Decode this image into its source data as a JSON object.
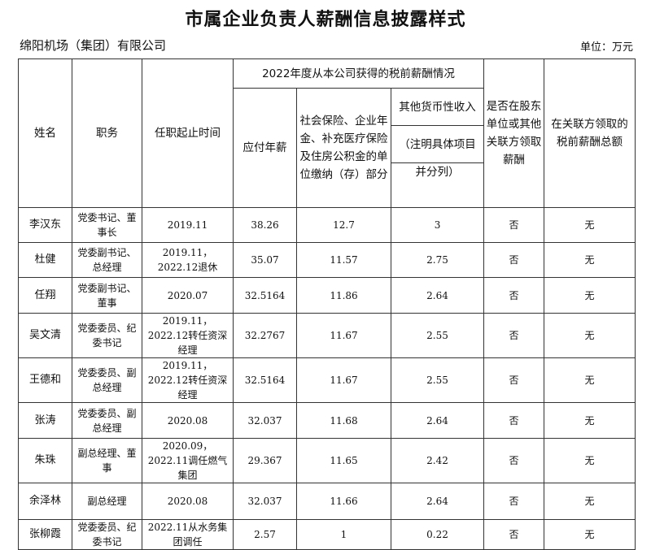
{
  "title": "市属企业负责人薪酬信息披露样式",
  "organization": "绵阳机场（集团）有限公司",
  "unit": "单位：万元",
  "headers": {
    "name": "姓名",
    "position": "职务",
    "term": "任职起止时间",
    "group": "2022年度从本公司获得的税前薪酬情况",
    "salary": "应付年薪",
    "insurance": "社会保险、企业年金、补充医疗保险及住房公积金的单位缴纳（存）部分",
    "other_1": "其他货币性收入",
    "other_2": "（注明具体项目",
    "other_3": "并分列）",
    "shareholder": "是否在股东单位或其他关联方领取薪酬",
    "related_total": "在关联方领取的税前薪酬总额"
  },
  "rows": [
    {
      "name": "李汉东",
      "position": "党委书记、董事长",
      "term": "2019.11",
      "salary": "38.26",
      "insurance": "12.7",
      "other": "3",
      "shareholder": "否",
      "related": "无"
    },
    {
      "name": "杜健",
      "position": "党委副书记、总经理",
      "term": "2019.11，2022.12退休",
      "salary": "35.07",
      "insurance": "11.57",
      "other": "2.75",
      "shareholder": "否",
      "related": "无"
    },
    {
      "name": "任翔",
      "position": "党委副书记、董事",
      "term": "2020.07",
      "salary": "32.5164",
      "insurance": "11.86",
      "other": "2.64",
      "shareholder": "否",
      "related": "无"
    },
    {
      "name": "吴文清",
      "position": "党委委员、纪委书记",
      "term": "2019.11，2022.12转任资深经理",
      "salary": "32.2767",
      "insurance": "11.67",
      "other": "2.55",
      "shareholder": "否",
      "related": "无"
    },
    {
      "name": "王德和",
      "position": "党委委员、副总经理",
      "term": "2019.11，2022.12转任资深经理",
      "salary": "32.5164",
      "insurance": "11.67",
      "other": "2.55",
      "shareholder": "否",
      "related": "无"
    },
    {
      "name": "张涛",
      "position": "党委委员、副总经理",
      "term": "2020.08",
      "salary": "32.037",
      "insurance": "11.68",
      "other": "2.64",
      "shareholder": "否",
      "related": "无"
    },
    {
      "name": "朱珠",
      "position": "副总经理、董事",
      "term": "2020.09，2022.11调任燃气集团",
      "salary": "29.367",
      "insurance": "11.65",
      "other": "2.42",
      "shareholder": "否",
      "related": "无"
    },
    {
      "name": "余泽林",
      "position": "副总经理",
      "term": "2020.08",
      "salary": "32.037",
      "insurance": "11.66",
      "other": "2.64",
      "shareholder": "否",
      "related": "无"
    },
    {
      "name": "张柳霞",
      "position": "党委委员、纪委书记",
      "term": "2022.11从水务集团调任",
      "salary": "2.57",
      "insurance": "1",
      "other": "0.22",
      "shareholder": "否",
      "related": "无"
    }
  ]
}
